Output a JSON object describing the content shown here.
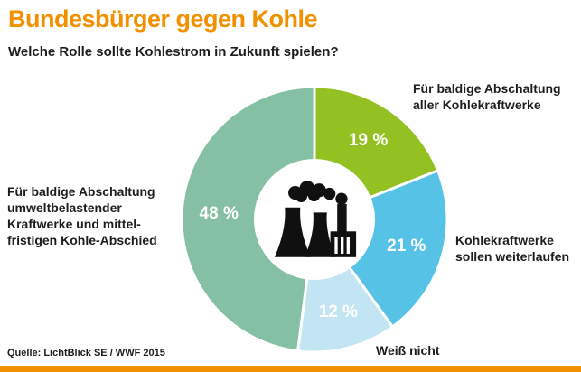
{
  "header": {
    "title": "Bundesbürger gegen Kohle",
    "question": "Welche Rolle sollte Kohlestrom in Zukunft spielen?"
  },
  "footer": {
    "source": "Quelle: LichtBlick SE / WWF 2015"
  },
  "colors": {
    "accent_orange": "#f29100",
    "text": "#1d1d1b",
    "donut_hole": "#ffffff"
  },
  "center_icon": "power-plant-icon",
  "chart_data": {
    "type": "pie",
    "variant": "donut",
    "unit": "%",
    "start_angle_deg": 0,
    "direction": "clockwise",
    "legend_position": "around-chart",
    "segments": [
      {
        "id": "abschaltung-alle",
        "label": "Für baldige Abschaltung\naller Kohlekraftwerke",
        "value": 19,
        "value_label": "19 %",
        "color": "#94c122"
      },
      {
        "id": "weiterlaufen",
        "label": "Kohlekraftwerke\nsollen weiterlaufen",
        "value": 21,
        "value_label": "21 %",
        "color": "#56c2e6"
      },
      {
        "id": "weiss-nicht",
        "label": "Weiß nicht",
        "value": 12,
        "value_label": "12 %",
        "color": "#c3e4f3"
      },
      {
        "id": "abschaltung-umweltbelastende",
        "label": "Für baldige Abschaltung\numweltbelastender\nKraftwerke und mittel-\nfristigen Kohle-Abschied",
        "value": 48,
        "value_label": "48 %",
        "color": "#85c0a5"
      }
    ]
  }
}
